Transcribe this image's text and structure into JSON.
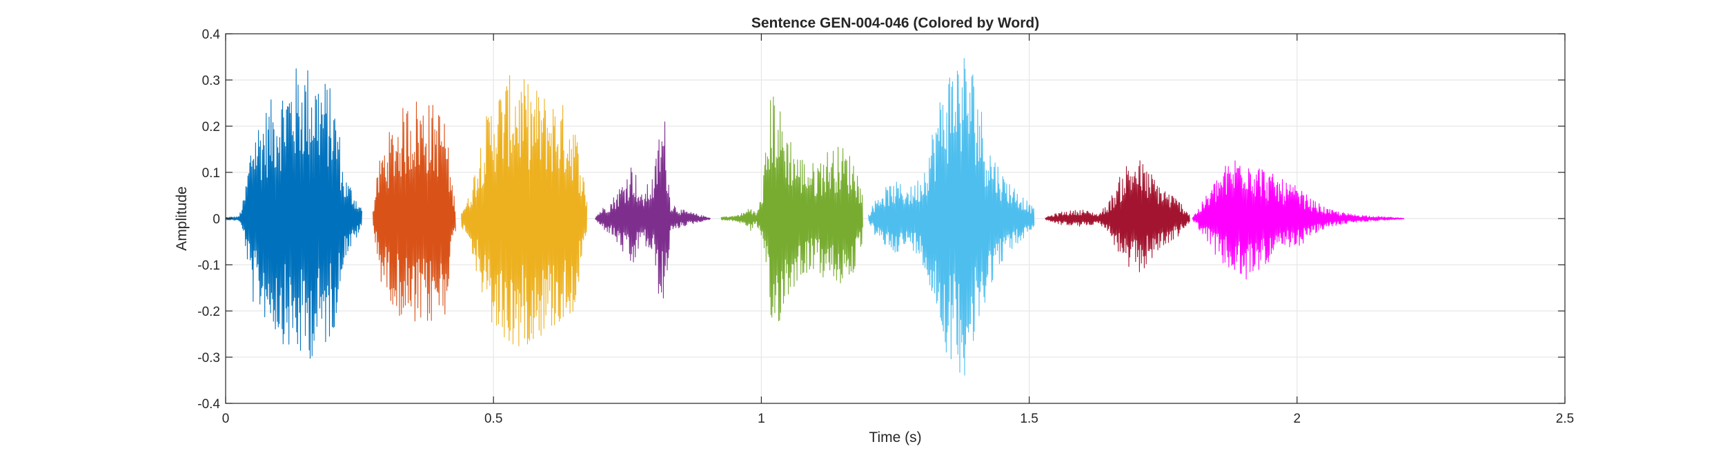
{
  "chart_data": {
    "type": "line",
    "title": "Sentence GEN-004-046 (Colored by Word)",
    "xlabel": "Time (s)",
    "ylabel": "Amplitude",
    "xlim": [
      0,
      2.5
    ],
    "ylim": [
      -0.4,
      0.4
    ],
    "xticks": [
      0,
      0.5,
      1,
      1.5,
      2,
      2.5
    ],
    "xtick_labels": [
      "0",
      "0.5",
      "1",
      "1.5",
      "2",
      "2.5"
    ],
    "yticks": [
      0.4,
      0.3,
      0.2,
      0.1,
      0,
      -0.1,
      -0.2,
      -0.3,
      -0.4
    ],
    "ytick_labels": [
      "0.4",
      "0.3",
      "0.2",
      "0.1",
      "0",
      "-0.1",
      "-0.2",
      "-0.3",
      "-0.4"
    ],
    "grid": true,
    "series": [
      {
        "color": "#0072BD",
        "t_start": 0.0,
        "t_end": 0.255,
        "envelope": [
          [
            0.0,
            0.003
          ],
          [
            0.025,
            0.005
          ],
          [
            0.035,
            0.05
          ],
          [
            0.05,
            0.2
          ],
          [
            0.08,
            0.25
          ],
          [
            0.11,
            0.3
          ],
          [
            0.13,
            0.33
          ],
          [
            0.15,
            0.34
          ],
          [
            0.17,
            0.32
          ],
          [
            0.19,
            0.3
          ],
          [
            0.2,
            0.27
          ],
          [
            0.21,
            0.22
          ],
          [
            0.22,
            0.1
          ],
          [
            0.235,
            0.07
          ],
          [
            0.255,
            0.02
          ]
        ]
      },
      {
        "color": "#D95319",
        "t_start": 0.275,
        "t_end": 0.43,
        "envelope": [
          [
            0.275,
            0.02
          ],
          [
            0.28,
            0.07
          ],
          [
            0.29,
            0.15
          ],
          [
            0.31,
            0.2
          ],
          [
            0.33,
            0.24
          ],
          [
            0.35,
            0.27
          ],
          [
            0.37,
            0.26
          ],
          [
            0.39,
            0.25
          ],
          [
            0.41,
            0.23
          ],
          [
            0.42,
            0.1
          ],
          [
            0.43,
            0.03
          ]
        ]
      },
      {
        "color": "#EDB120",
        "t_start": 0.44,
        "t_end": 0.675,
        "envelope": [
          [
            0.44,
            0.02
          ],
          [
            0.455,
            0.05
          ],
          [
            0.48,
            0.2
          ],
          [
            0.5,
            0.27
          ],
          [
            0.52,
            0.3
          ],
          [
            0.54,
            0.32
          ],
          [
            0.56,
            0.3
          ],
          [
            0.6,
            0.27
          ],
          [
            0.63,
            0.25
          ],
          [
            0.65,
            0.22
          ],
          [
            0.665,
            0.12
          ],
          [
            0.675,
            0.04
          ]
        ]
      },
      {
        "color": "#7E2F8E",
        "t_start": 0.69,
        "t_end": 0.905,
        "envelope": [
          [
            0.69,
            0.003
          ],
          [
            0.7,
            0.02
          ],
          [
            0.72,
            0.04
          ],
          [
            0.745,
            0.09
          ],
          [
            0.76,
            0.13
          ],
          [
            0.775,
            0.05
          ],
          [
            0.8,
            0.1
          ],
          [
            0.81,
            0.2
          ],
          [
            0.82,
            0.22
          ],
          [
            0.83,
            0.04
          ],
          [
            0.85,
            0.02
          ],
          [
            0.88,
            0.01
          ],
          [
            0.905,
            0.002
          ]
        ]
      },
      {
        "color": "#77AC30",
        "t_start": 0.925,
        "t_end": 1.19,
        "envelope": [
          [
            0.925,
            0.004
          ],
          [
            0.95,
            0.006
          ],
          [
            0.97,
            0.015
          ],
          [
            0.98,
            0.03
          ],
          [
            0.99,
            0.01
          ],
          [
            1.0,
            0.05
          ],
          [
            1.02,
            0.3
          ],
          [
            1.04,
            0.22
          ],
          [
            1.07,
            0.14
          ],
          [
            1.1,
            0.12
          ],
          [
            1.12,
            0.15
          ],
          [
            1.15,
            0.16
          ],
          [
            1.175,
            0.13
          ],
          [
            1.19,
            0.05
          ]
        ]
      },
      {
        "color": "#4DBEEE",
        "t_start": 1.2,
        "t_end": 1.51,
        "envelope": [
          [
            1.2,
            0.01
          ],
          [
            1.22,
            0.06
          ],
          [
            1.25,
            0.08
          ],
          [
            1.28,
            0.07
          ],
          [
            1.3,
            0.1
          ],
          [
            1.32,
            0.2
          ],
          [
            1.34,
            0.3
          ],
          [
            1.36,
            0.36
          ],
          [
            1.38,
            0.37
          ],
          [
            1.4,
            0.32
          ],
          [
            1.42,
            0.18
          ],
          [
            1.45,
            0.1
          ],
          [
            1.48,
            0.06
          ],
          [
            1.51,
            0.02
          ]
        ]
      },
      {
        "color": "#A2142F",
        "t_start": 1.53,
        "t_end": 1.8,
        "envelope": [
          [
            1.53,
            0.003
          ],
          [
            1.56,
            0.015
          ],
          [
            1.6,
            0.02
          ],
          [
            1.63,
            0.01
          ],
          [
            1.65,
            0.04
          ],
          [
            1.68,
            0.12
          ],
          [
            1.7,
            0.14
          ],
          [
            1.72,
            0.11
          ],
          [
            1.75,
            0.07
          ],
          [
            1.78,
            0.04
          ],
          [
            1.8,
            0.01
          ]
        ]
      },
      {
        "color": "#FF00FF",
        "t_start": 1.805,
        "t_end": 2.2,
        "envelope": [
          [
            1.805,
            0.004
          ],
          [
            1.82,
            0.03
          ],
          [
            1.84,
            0.07
          ],
          [
            1.86,
            0.11
          ],
          [
            1.88,
            0.13
          ],
          [
            1.9,
            0.16
          ],
          [
            1.92,
            0.13
          ],
          [
            1.95,
            0.1
          ],
          [
            1.98,
            0.08
          ],
          [
            2.0,
            0.07
          ],
          [
            2.03,
            0.04
          ],
          [
            2.06,
            0.02
          ],
          [
            2.1,
            0.01
          ],
          [
            2.15,
            0.005
          ],
          [
            2.2,
            0.001
          ]
        ]
      }
    ]
  }
}
